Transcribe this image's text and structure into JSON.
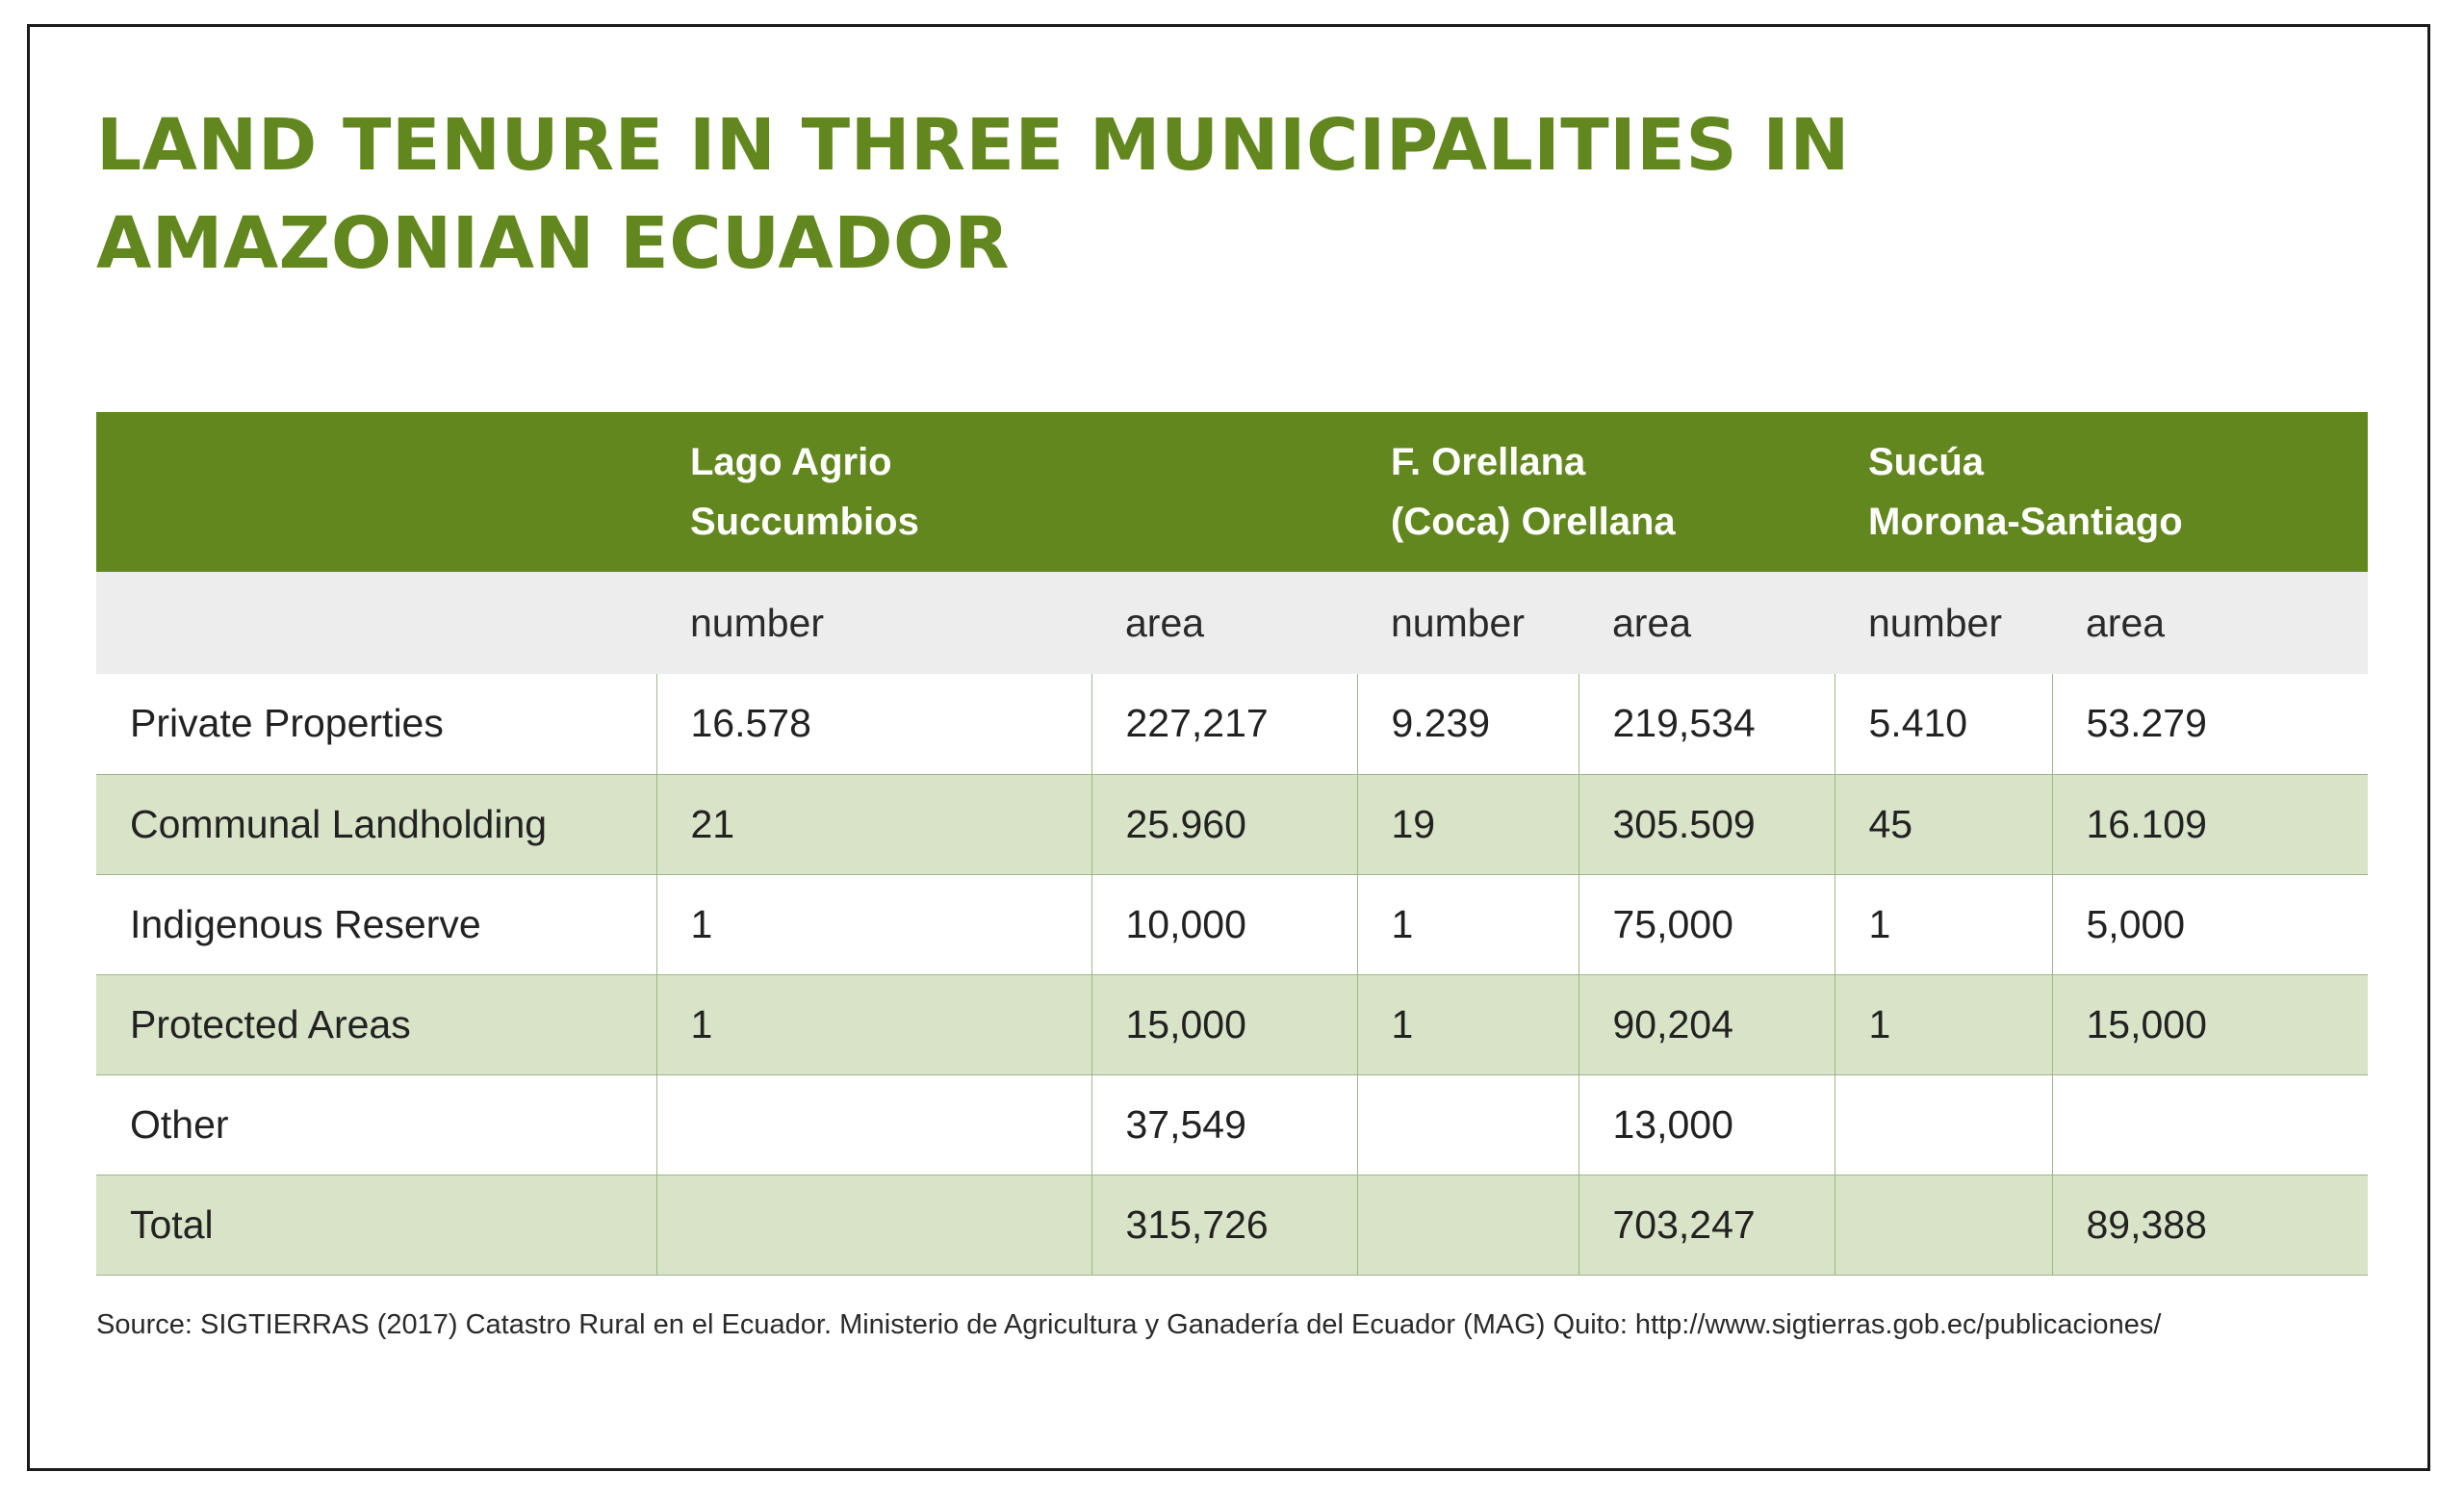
{
  "title": "LAND TENURE IN THREE MUNICIPALITIES IN AMAZONIAN ECUADOR",
  "table": {
    "municipalities": [
      {
        "line1": "Lago Agrio",
        "line2": "Succumbios"
      },
      {
        "line1": "F. Orellana",
        "line2": "(Coca) Orellana"
      },
      {
        "line1": "Sucúa",
        "line2": "Morona-Santiago"
      }
    ],
    "subheaders": [
      "",
      "number",
      "area",
      "number",
      "area",
      "number",
      "area"
    ],
    "rows": [
      {
        "label": "Private Properties",
        "cells": [
          "16.578",
          "227,217",
          "9.239",
          "219,534",
          "5.410",
          "53.279"
        ]
      },
      {
        "label": "Communal Landholding",
        "cells": [
          "21",
          "25.960",
          "19",
          "305.509",
          "45",
          "16.109"
        ]
      },
      {
        "label": "Indigenous Reserve",
        "cells": [
          "1",
          "10,000",
          "1",
          "75,000",
          "1",
          "5,000"
        ]
      },
      {
        "label": "Protected Areas",
        "cells": [
          "1",
          "15,000",
          "1",
          "90,204",
          "1",
          "15,000"
        ]
      },
      {
        "label": "Other",
        "cells": [
          "",
          "37,549",
          "",
          "13,000",
          "",
          ""
        ]
      },
      {
        "label": "Total",
        "cells": [
          "",
          "315,726",
          "",
          "703,247",
          "",
          "89,388"
        ]
      }
    ]
  },
  "source": "Source: SIGTIERRAS (2017) Catastro Rural en el Ecuador. Ministerio de Agricultura y Ganadería del Ecuador (MAG) Quito: http://www.sigtierras.gob.ec/publicaciones/",
  "colors": {
    "accent_green": "#62871f",
    "row_shade": "#d8e3c7",
    "subheader_gray": "#ededed",
    "grid_line": "#9fb58a"
  }
}
